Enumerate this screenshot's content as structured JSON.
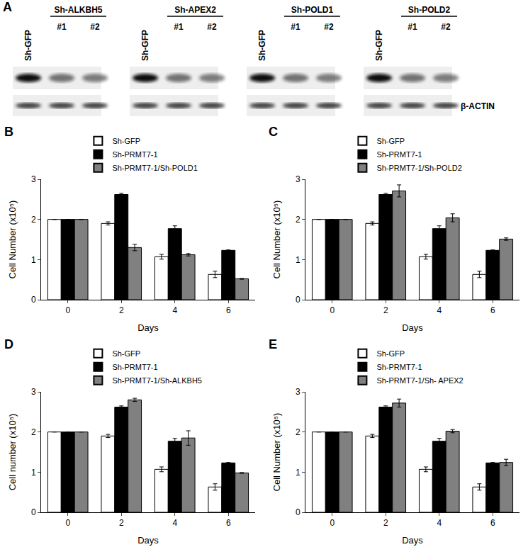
{
  "panel_labels": [
    "A",
    "B",
    "C",
    "D",
    "E"
  ],
  "blot": {
    "groups": [
      {
        "control": "Sh-GFP",
        "target": "Sh-ALKBH5",
        "lanes": [
          "#1",
          "#2"
        ]
      },
      {
        "control": "Sh-GFP",
        "target": "Sh-APEX2",
        "lanes": [
          "#1",
          "#2"
        ]
      },
      {
        "control": "Sh-GFP",
        "target": "Sh-POLD1",
        "lanes": [
          "#1",
          "#2"
        ]
      },
      {
        "control": "Sh-GFP",
        "target": "Sh-POLD2",
        "lanes": [
          "#1",
          "#2"
        ]
      }
    ],
    "loading_control": "β-ACTIN"
  },
  "chart_data": [
    {
      "type": "bar",
      "x_label": "Days",
      "y_label": "Cell Number (x10⁵)",
      "categories": [
        "0",
        "2",
        "4",
        "6"
      ],
      "ylim": [
        0,
        3
      ],
      "yticks": [
        0,
        1,
        2,
        3
      ],
      "legend": "top",
      "series": [
        {
          "name": "Sh-GFP",
          "color": "#ffffff",
          "values": [
            2,
            1.9,
            1.07,
            0.63
          ],
          "errors": [
            0,
            0.04,
            0.06,
            0.08
          ]
        },
        {
          "name": "Sh-PRMT7-1",
          "color": "#000000",
          "values": [
            2,
            2.62,
            1.77,
            1.23
          ],
          "errors": [
            0,
            0.03,
            0.07,
            0.01
          ]
        },
        {
          "name": "Sh-PRMT7-1/Sh-POLD1",
          "color": "#808080",
          "values": [
            2,
            1.3,
            1.12,
            0.52
          ],
          "errors": [
            0,
            0.08,
            0.03,
            0.01
          ]
        }
      ]
    },
    {
      "type": "bar",
      "x_label": "Days",
      "y_label": "Cell Number (x10⁵)",
      "categories": [
        "0",
        "2",
        "4",
        "6"
      ],
      "ylim": [
        0,
        3
      ],
      "yticks": [
        0,
        1,
        2,
        3
      ],
      "legend": "top",
      "series": [
        {
          "name": "Sh-GFP",
          "color": "#ffffff",
          "values": [
            2,
            1.9,
            1.07,
            0.63
          ],
          "errors": [
            0,
            0.04,
            0.06,
            0.08
          ]
        },
        {
          "name": "Sh-PRMT7-1",
          "color": "#000000",
          "values": [
            2,
            2.62,
            1.77,
            1.23
          ],
          "errors": [
            0,
            0.03,
            0.07,
            0.01
          ]
        },
        {
          "name": "Sh-PRMT7-1/Sh-POLD2",
          "color": "#808080",
          "values": [
            2,
            2.71,
            2.04,
            1.51
          ],
          "errors": [
            0,
            0.15,
            0.1,
            0.03
          ]
        }
      ]
    },
    {
      "type": "bar",
      "x_label": "Days",
      "y_label": "Cell number (x10⁵)",
      "categories": [
        "0",
        "2",
        "4",
        "6"
      ],
      "ylim": [
        0,
        3
      ],
      "yticks": [
        0,
        1,
        2,
        3
      ],
      "legend": "top",
      "series": [
        {
          "name": "Sh-GFP",
          "color": "#ffffff",
          "values": [
            2,
            1.9,
            1.07,
            0.63
          ],
          "errors": [
            0,
            0.04,
            0.06,
            0.08
          ]
        },
        {
          "name": "Sh-PRMT7-1",
          "color": "#000000",
          "values": [
            2,
            2.62,
            1.77,
            1.23
          ],
          "errors": [
            0,
            0.03,
            0.07,
            0.01
          ]
        },
        {
          "name": "Sh-PRMT7-1/Sh-ALKBH5",
          "color": "#808080",
          "values": [
            2,
            2.8,
            1.85,
            0.98
          ],
          "errors": [
            0,
            0.04,
            0.18,
            0.01
          ]
        }
      ]
    },
    {
      "type": "bar",
      "x_label": "Days",
      "y_label": "Cell Number (x10⁵)",
      "categories": [
        "0",
        "2",
        "4",
        "6"
      ],
      "ylim": [
        0,
        3
      ],
      "yticks": [
        0,
        1,
        2,
        3
      ],
      "legend": "top",
      "series": [
        {
          "name": "Sh-GFP",
          "color": "#ffffff",
          "values": [
            2,
            1.9,
            1.07,
            0.63
          ],
          "errors": [
            0,
            0.04,
            0.06,
            0.08
          ]
        },
        {
          "name": "Sh-PRMT7-1",
          "color": "#000000",
          "values": [
            2,
            2.62,
            1.77,
            1.23
          ],
          "errors": [
            0,
            0.03,
            0.07,
            0.01
          ]
        },
        {
          "name": "Sh-PRMT7-1/Sh- APEX2",
          "color": "#808080",
          "values": [
            2,
            2.72,
            2.02,
            1.24
          ],
          "errors": [
            0,
            0.1,
            0.04,
            0.08
          ]
        }
      ]
    }
  ]
}
